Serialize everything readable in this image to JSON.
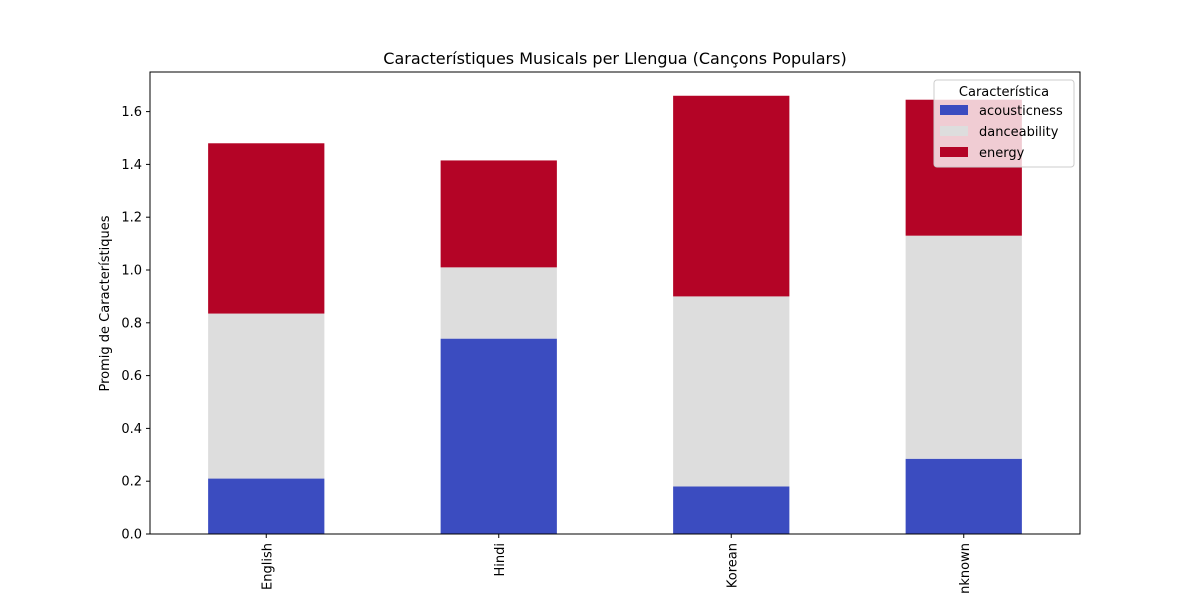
{
  "chart_data": {
    "type": "bar",
    "stacked": true,
    "title": "Característiques Musicals per Llengua (Cançons Populars)",
    "xlabel": "",
    "ylabel": "Promig de Característiques",
    "categories": [
      "English",
      "Hindi",
      "Korean",
      "nknown"
    ],
    "ylim": [
      0,
      1.75
    ],
    "yticks": [
      "0.0",
      "0.2",
      "0.4",
      "0.6",
      "0.8",
      "1.0",
      "1.2",
      "1.4",
      "1.6"
    ],
    "grid": false,
    "legend": {
      "title": "Característica",
      "position": "top-right"
    },
    "series": [
      {
        "name": "acousticness",
        "color": "#3b4cc0",
        "values": [
          0.21,
          0.74,
          0.18,
          0.285
        ]
      },
      {
        "name": "danceability",
        "color": "#dddddd",
        "values": [
          0.625,
          0.27,
          0.72,
          0.845
        ]
      },
      {
        "name": "energy",
        "color": "#b40426",
        "values": [
          0.645,
          0.405,
          0.76,
          0.515
        ]
      }
    ]
  }
}
